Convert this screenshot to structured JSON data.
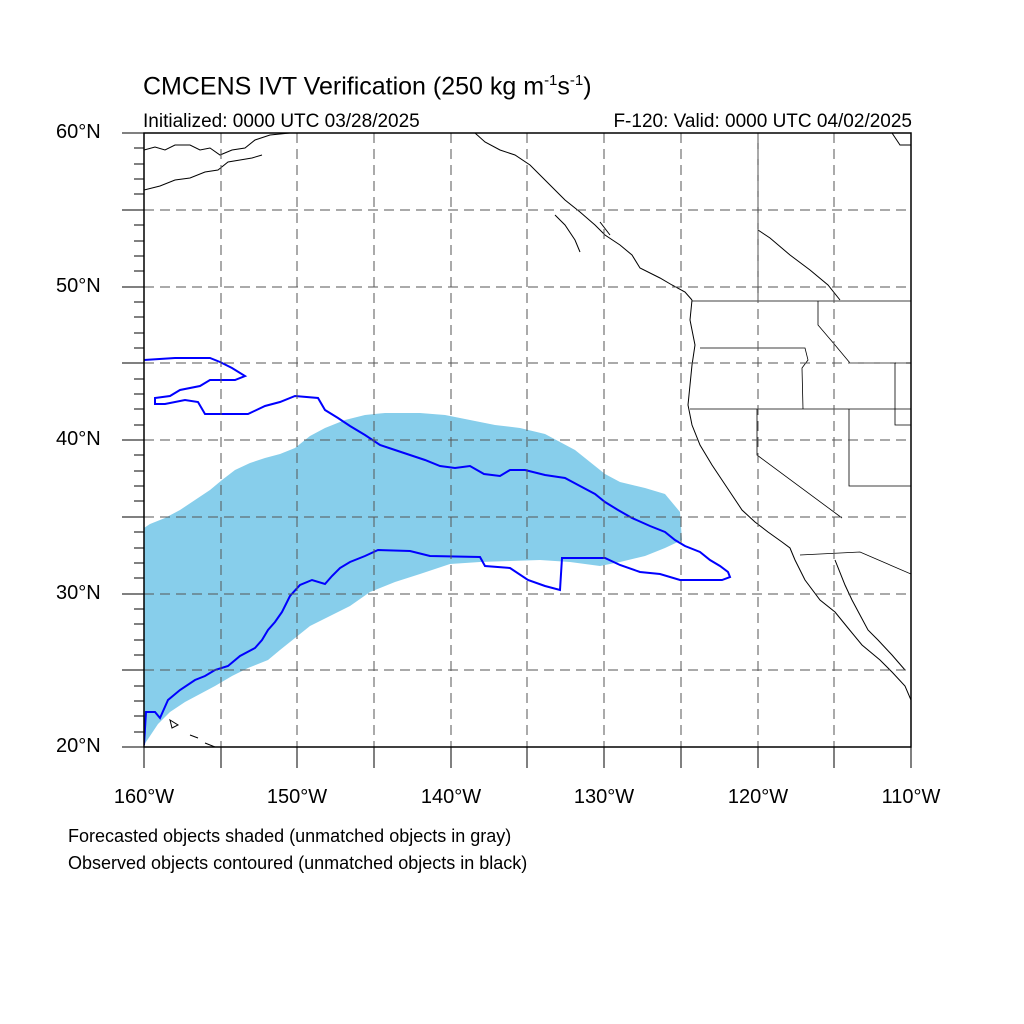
{
  "title": {
    "main_prefix": "CMCENS IVT Verification (250 kg m",
    "sup1": "-1",
    "mid": "s",
    "sup2": "-1",
    "suffix": ")"
  },
  "initialized": "Initialized: 0000 UTC 03/28/2025",
  "valid": "F-120: Valid: 0000 UTC 04/02/2025",
  "axes": {
    "lat_labels": [
      "60°N",
      "50°N",
      "40°N",
      "30°N",
      "20°N"
    ],
    "lon_labels": [
      "160°W",
      "150°W",
      "140°W",
      "130°W",
      "120°W",
      "110°W"
    ],
    "lat_range": [
      20,
      60
    ],
    "lon_range": [
      -160,
      -110
    ],
    "grid": "dashed, every 5°"
  },
  "legend_notes": [
    "Forecasted objects shaded (unmatched objects in gray)",
    "Observed objects contoured (unmatched objects in black)"
  ],
  "colors": {
    "forecast_fill": "#87ceeb",
    "observed_contour": "#0000ff",
    "coast": "#000000",
    "grid": "#555555"
  }
}
